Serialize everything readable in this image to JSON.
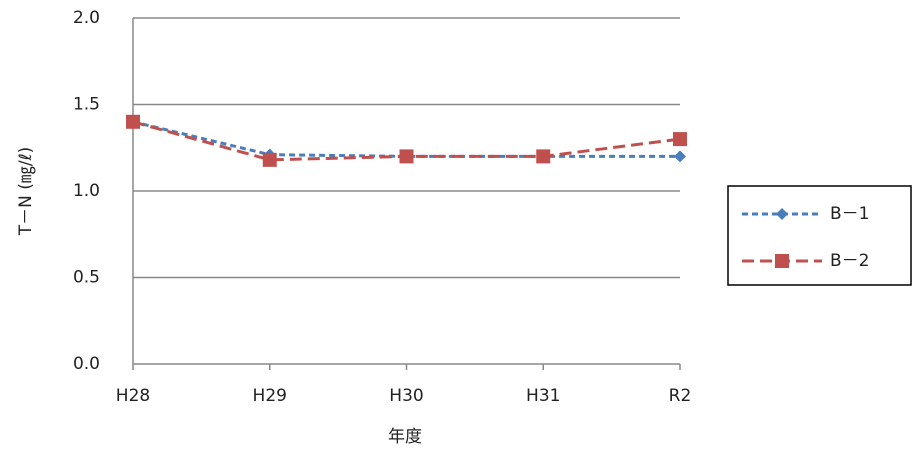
{
  "chart_data": {
    "type": "line",
    "x_label": "年度",
    "y_label": "T－N (㎎/ℓ)",
    "categories": [
      "H28",
      "H29",
      "H30",
      "H31",
      "R2"
    ],
    "series": [
      {
        "name": "B－1",
        "color": "#4a7ebb",
        "marker": "diamond",
        "values": [
          1.4,
          1.21,
          1.2,
          1.2,
          1.2
        ]
      },
      {
        "name": "B－2",
        "color": "#c0504d",
        "marker": "square",
        "values": [
          1.4,
          1.18,
          1.2,
          1.2,
          1.3
        ]
      }
    ],
    "ylim": [
      0,
      2
    ],
    "yticks": [
      {
        "value": 0,
        "label": "0.0"
      },
      0.5,
      {
        "value": 1,
        "label": "1.0"
      },
      1.5,
      {
        "value": 2,
        "label": "2.0"
      }
    ],
    "grid": true,
    "legend_position": "right"
  }
}
